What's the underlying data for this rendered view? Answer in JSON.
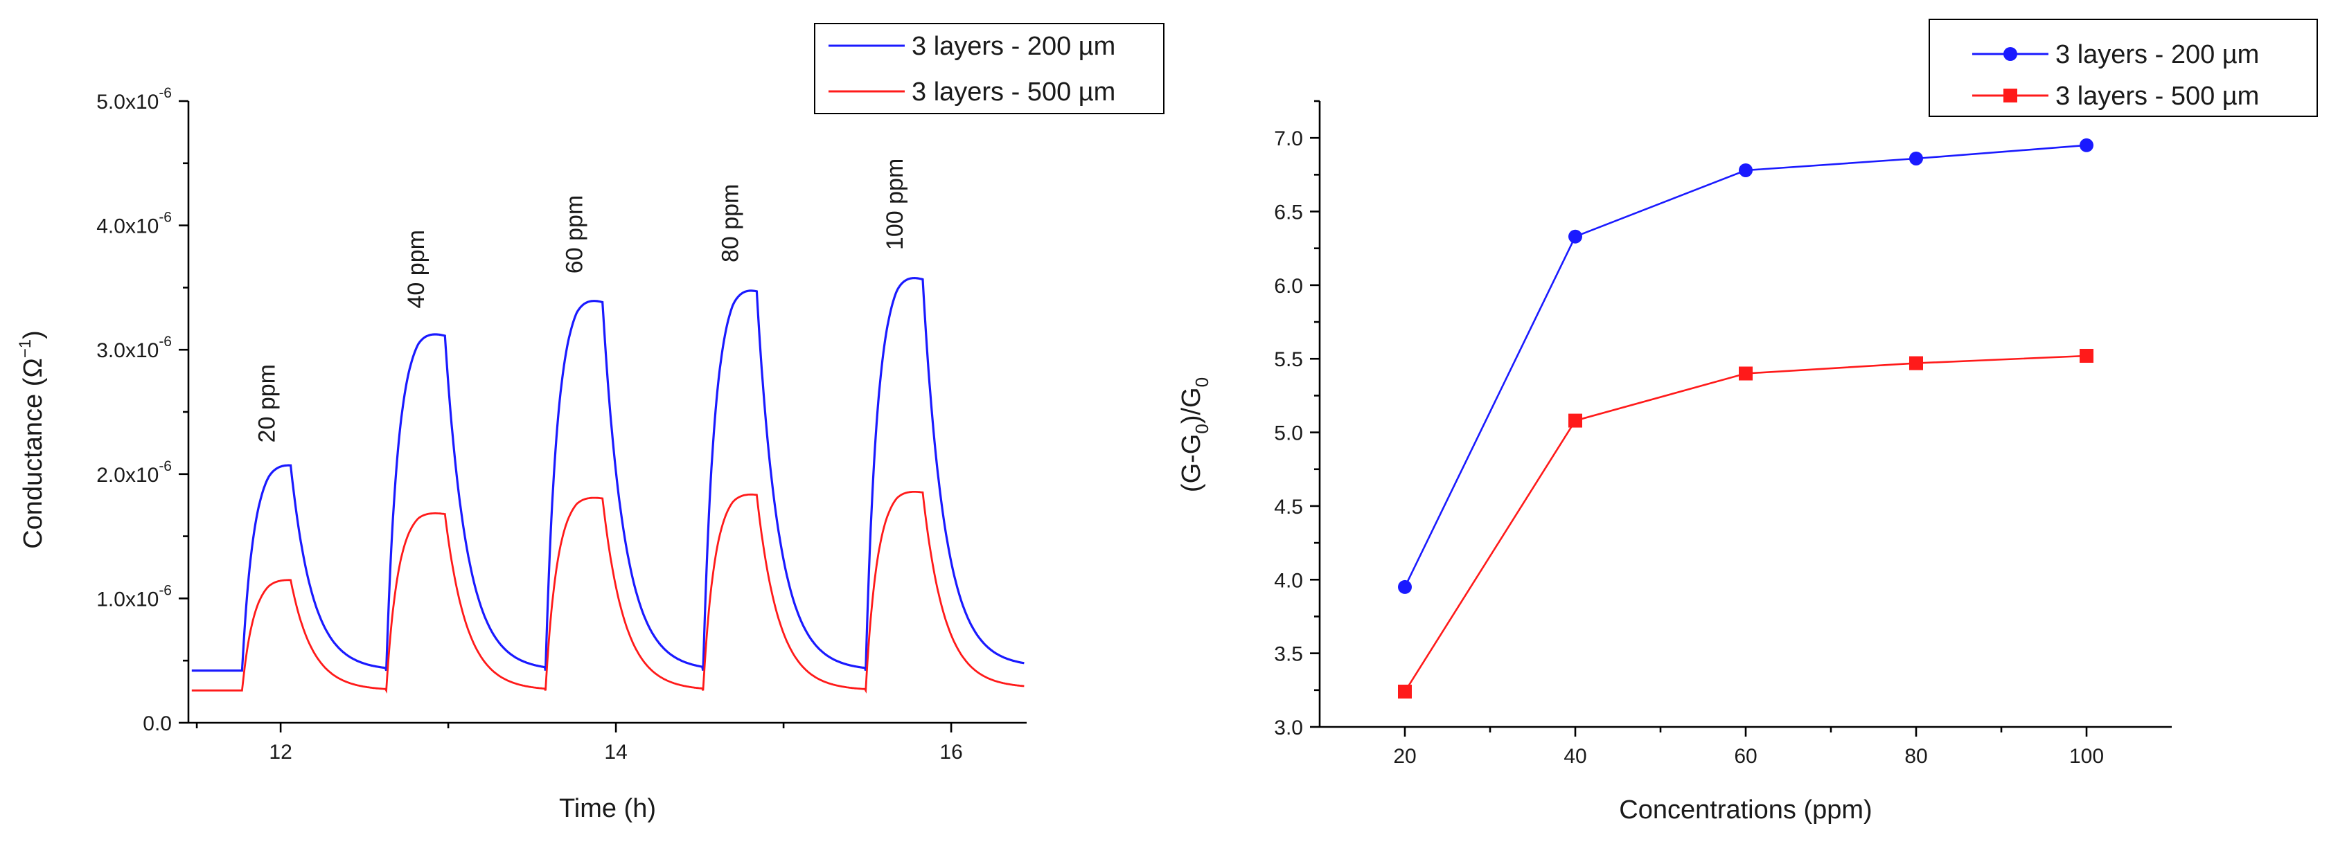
{
  "chart_data": [
    {
      "type": "line",
      "xlabel": "Time (h)",
      "ylabel_parts": [
        "Conductance (Ω",
        "−1",
        ")"
      ],
      "xlim": [
        11.45,
        16.45
      ],
      "ylim": [
        0,
        5e-06
      ],
      "xticks": [
        12,
        14,
        16
      ],
      "xtick_labels": [
        "12",
        "14",
        "16"
      ],
      "yticks": [
        0,
        1e-06,
        2e-06,
        3e-06,
        4e-06,
        5e-06
      ],
      "ytick_labels": [
        {
          "base": "0.0",
          "exp": ""
        },
        {
          "base": "1.0x10",
          "exp": "-6"
        },
        {
          "base": "2.0x10",
          "exp": "-6"
        },
        {
          "base": "3.0x10",
          "exp": "-6"
        },
        {
          "base": "4.0x10",
          "exp": "-6"
        },
        {
          "base": "5.0x10",
          "exp": "-6"
        }
      ],
      "legend": {
        "placement": "top-right"
      },
      "pulses": [
        {
          "label": "20 ppm",
          "start": 11.77,
          "end": 12.06,
          "peak_blue": 2.13e-06,
          "peak_red": 1.18e-06
        },
        {
          "label": "40 ppm",
          "start": 12.63,
          "end": 12.98,
          "peak_blue": 3.21e-06,
          "peak_red": 1.73e-06
        },
        {
          "label": "60 ppm",
          "start": 13.58,
          "end": 13.92,
          "peak_blue": 3.49e-06,
          "peak_red": 1.86e-06
        },
        {
          "label": "80 ppm",
          "start": 14.52,
          "end": 14.84,
          "peak_blue": 3.58e-06,
          "peak_red": 1.89e-06
        },
        {
          "label": "100 ppm",
          "start": 15.49,
          "end": 15.83,
          "peak_blue": 3.68e-06,
          "peak_red": 1.91e-06
        }
      ],
      "series": [
        {
          "name": "3 layers - 200 µm",
          "color": "#1a1aff",
          "baseline": 4.2e-07,
          "end_value": 4.5e-07
        },
        {
          "name": "3 layers - 500 µm",
          "color": "#ff1a1a",
          "baseline": 2.6e-07,
          "end_value": 2.8e-07
        }
      ]
    },
    {
      "type": "line",
      "xlabel": "Concentrations (ppm)",
      "ylabel_parts": [
        "(G-G",
        "0",
        ")/G",
        "0"
      ],
      "xlim": [
        10,
        110
      ],
      "ylim": [
        3.0,
        7.25
      ],
      "xticks": [
        20,
        40,
        60,
        80,
        100
      ],
      "yticks": [
        3.0,
        3.5,
        4.0,
        4.5,
        5.0,
        5.5,
        6.0,
        6.5,
        7.0
      ],
      "legend": {
        "placement": "top-right"
      },
      "x": [
        20,
        40,
        60,
        80,
        100
      ],
      "series": [
        {
          "name": "3 layers - 200 µm",
          "color": "#1a1aff",
          "marker": "circle",
          "values": [
            3.95,
            6.33,
            6.78,
            6.86,
            6.95
          ]
        },
        {
          "name": "3 layers - 500 µm",
          "color": "#ff1a1a",
          "marker": "square",
          "values": [
            3.24,
            5.08,
            5.4,
            5.47,
            5.52
          ]
        }
      ]
    }
  ]
}
